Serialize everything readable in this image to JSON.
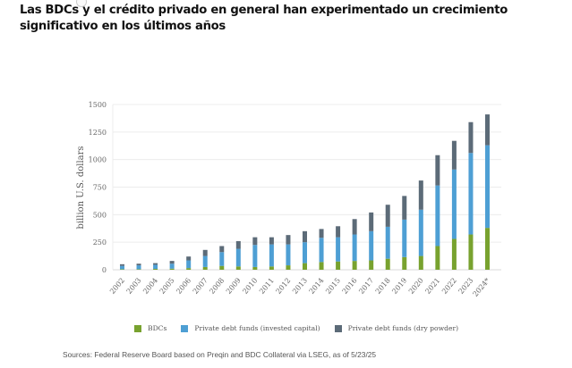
{
  "header": {
    "title": "Las BDCs y el crédito privado en general han experimentado un crecimiento significativo en los últimos años"
  },
  "chart_data": {
    "type": "bar",
    "stacked": true,
    "title": "",
    "xlabel": "",
    "ylabel": "billion U.S. dollars",
    "ylim": [
      0,
      1500
    ],
    "yticks": [
      0,
      250,
      500,
      750,
      1000,
      1250,
      1500
    ],
    "grid": true,
    "legend_position": "bottom",
    "categories": [
      "2002",
      "2003",
      "2004",
      "2005",
      "2006",
      "2007",
      "2008",
      "2009",
      "2010",
      "2011",
      "2012",
      "2013",
      "2014",
      "2015",
      "2016",
      "2017",
      "2018",
      "2019",
      "2020",
      "2021",
      "2022",
      "2023",
      "2024*"
    ],
    "series": [
      {
        "name": "BDCs",
        "color": "#78a22f",
        "values": [
          5,
          5,
          8,
          10,
          15,
          25,
          35,
          30,
          25,
          30,
          40,
          60,
          70,
          75,
          80,
          85,
          100,
          115,
          125,
          215,
          280,
          320,
          380
        ]
      },
      {
        "name": "Private debt funds (invested capital)",
        "color": "#4e9fd4",
        "values": [
          30,
          35,
          37,
          45,
          70,
          100,
          125,
          160,
          200,
          200,
          190,
          190,
          220,
          220,
          240,
          265,
          290,
          340,
          420,
          550,
          630,
          740,
          750
        ]
      },
      {
        "name": "Private debt funds (dry powder)",
        "color": "#5c6b78",
        "values": [
          15,
          15,
          15,
          25,
          35,
          55,
          55,
          70,
          70,
          65,
          85,
          100,
          80,
          100,
          140,
          170,
          200,
          215,
          265,
          275,
          260,
          280,
          280
        ]
      }
    ]
  },
  "legend": {
    "items": [
      {
        "label": "BDCs",
        "color": "#78a22f"
      },
      {
        "label": "Private debt funds (invested capital)",
        "color": "#4e9fd4"
      },
      {
        "label": "Private debt funds (dry powder)",
        "color": "#5c6b78"
      }
    ]
  },
  "footer": {
    "source": "Sources: Federal Reserve Board based on Preqin and BDC Collateral via LSEG, as of 5/23/25"
  }
}
